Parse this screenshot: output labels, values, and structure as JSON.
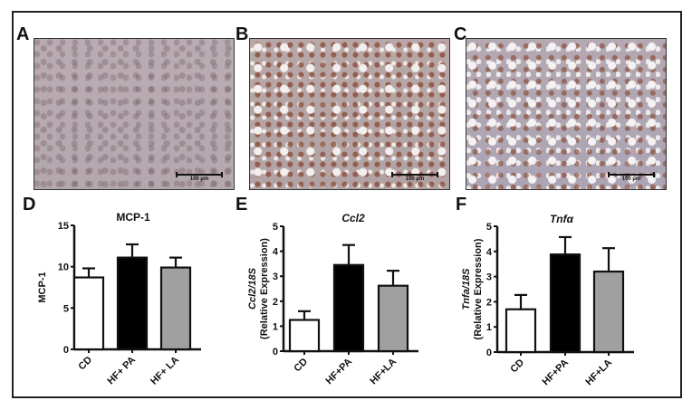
{
  "panels": {
    "A": {
      "label": "A",
      "scale_bar": "100 µm"
    },
    "B": {
      "label": "B",
      "scale_bar": "100 µm"
    },
    "C": {
      "label": "C",
      "scale_bar": "100 µm"
    },
    "D": {
      "label": "D"
    },
    "E": {
      "label": "E"
    },
    "F": {
      "label": "F"
    }
  },
  "colors": {
    "CD": "#ffffff",
    "HF+PA": "#000000",
    "HF+LA": "#a0a0a0",
    "stroke": "#111111"
  },
  "chart_data": [
    {
      "panel": "D",
      "type": "bar",
      "title": "MCP-1",
      "title_italic": false,
      "ylabel": "MCP-1",
      "ylabel2": "",
      "categories": [
        "CD",
        "HF+ PA",
        "HF+ LA"
      ],
      "values": [
        8.7,
        11.1,
        9.9
      ],
      "errors": [
        1.1,
        1.6,
        1.2
      ],
      "ylim": [
        0,
        15
      ],
      "yticks": [
        0,
        5,
        10,
        15
      ],
      "grid": false
    },
    {
      "panel": "E",
      "type": "bar",
      "title": "Ccl2",
      "title_italic": true,
      "ylabel": "Ccl2/18S",
      "ylabel2": "(Relative Expression)",
      "categories": [
        "CD",
        "HF+PA",
        "HF+LA"
      ],
      "values": [
        1.25,
        3.45,
        2.62
      ],
      "errors": [
        0.35,
        0.8,
        0.6
      ],
      "ylim": [
        0,
        5
      ],
      "yticks": [
        0,
        1,
        2,
        3,
        4,
        5
      ],
      "grid": false
    },
    {
      "panel": "F",
      "type": "bar",
      "title": "Tnfα",
      "title_italic": true,
      "ylabel": "Tnfa/18S",
      "ylabel2": "(Relative Expression)",
      "categories": [
        "CD",
        "HF+PA",
        "HF+LA"
      ],
      "values": [
        1.7,
        3.88,
        3.2
      ],
      "errors": [
        0.57,
        0.69,
        0.93
      ],
      "ylim": [
        0,
        5
      ],
      "yticks": [
        0,
        1,
        2,
        3,
        4,
        5
      ],
      "grid": false
    }
  ]
}
